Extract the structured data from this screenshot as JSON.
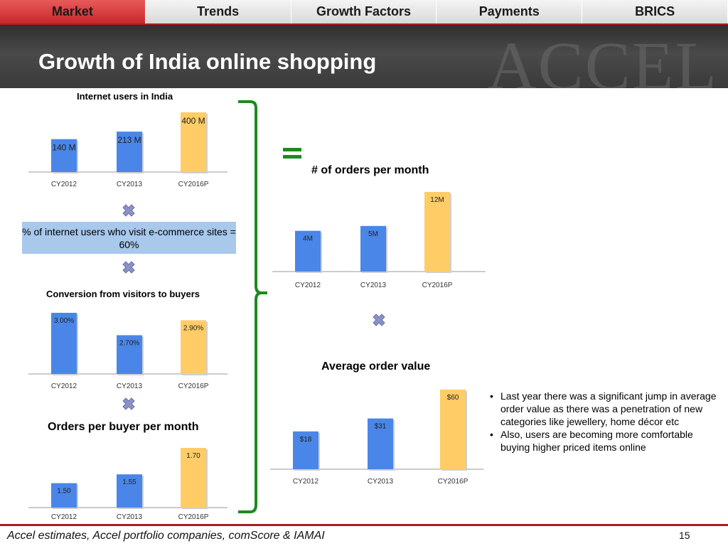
{
  "nav": {
    "tabs": [
      {
        "label": "Market",
        "active": true
      },
      {
        "label": "Trends",
        "active": false
      },
      {
        "label": "Growth Factors",
        "active": false
      },
      {
        "label": "Payments",
        "active": false
      },
      {
        "label": "BRICS",
        "active": false
      }
    ]
  },
  "header": {
    "title": "Growth of India online shopping",
    "watermark": "ACCEL"
  },
  "colors": {
    "blue_bar": "#4a86e8",
    "yellow_bar": "#ffcc66",
    "bracket_green": "#1d8a1d",
    "multiply_icon": "#8a92c8"
  },
  "icons": {
    "multiply": "multiply-icon",
    "equals": "equals-icon"
  },
  "infobox": {
    "text": "% of internet users who visit e-commerce sites = 60%"
  },
  "chart_data": [
    {
      "id": "internet_users",
      "type": "bar",
      "title": "Internet users in India",
      "categories": [
        "CY2012",
        "CY2013",
        "CY2016P"
      ],
      "values": [
        140,
        213,
        400
      ],
      "unit": "M",
      "labels": [
        "140 M",
        "213 M",
        "400 M"
      ],
      "ylim": [
        0,
        400
      ]
    },
    {
      "id": "conversion",
      "type": "bar",
      "title": "Conversion from visitors to buyers",
      "categories": [
        "CY2012",
        "CY2013",
        "CY2016P"
      ],
      "values": [
        3.0,
        2.7,
        2.9
      ],
      "unit": "%",
      "labels": [
        "3.00%",
        "2.70%",
        "2.90%"
      ],
      "ylim": [
        2.6,
        3.0
      ]
    },
    {
      "id": "orders_per_buyer",
      "type": "bar",
      "title": "Orders per buyer per month",
      "categories": [
        "CY2012",
        "CY2013",
        "CY2016P"
      ],
      "values": [
        1.5,
        1.55,
        1.7
      ],
      "labels": [
        "1.50",
        "1.55",
        "1.70"
      ],
      "ylim": [
        1.45,
        1.7
      ]
    },
    {
      "id": "orders_per_month",
      "type": "bar",
      "title": "# of orders per month",
      "categories": [
        "CY2012",
        "CY2013",
        "CY2016P"
      ],
      "values": [
        4,
        5,
        12
      ],
      "unit": "M",
      "labels": [
        "4M",
        "5M",
        "12M"
      ],
      "ylim": [
        0,
        12
      ]
    },
    {
      "id": "avg_order_value",
      "type": "bar",
      "title": "Average order value",
      "categories": [
        "CY2012",
        "CY2013",
        "CY2016P"
      ],
      "values": [
        18,
        31,
        60
      ],
      "unit": "$",
      "labels": [
        "$18",
        "$31",
        "$60"
      ],
      "ylim": [
        0,
        60
      ]
    }
  ],
  "notes": {
    "bullets": [
      "Last year there was a significant jump in average order value as there was a penetration of new categories like jewellery, home décor etc",
      "Also, users are becoming more comfortable buying higher priced items online"
    ]
  },
  "footer": {
    "source": "Accel estimates, Accel portfolio companies, comScore & IAMAI",
    "page_number": "15"
  }
}
